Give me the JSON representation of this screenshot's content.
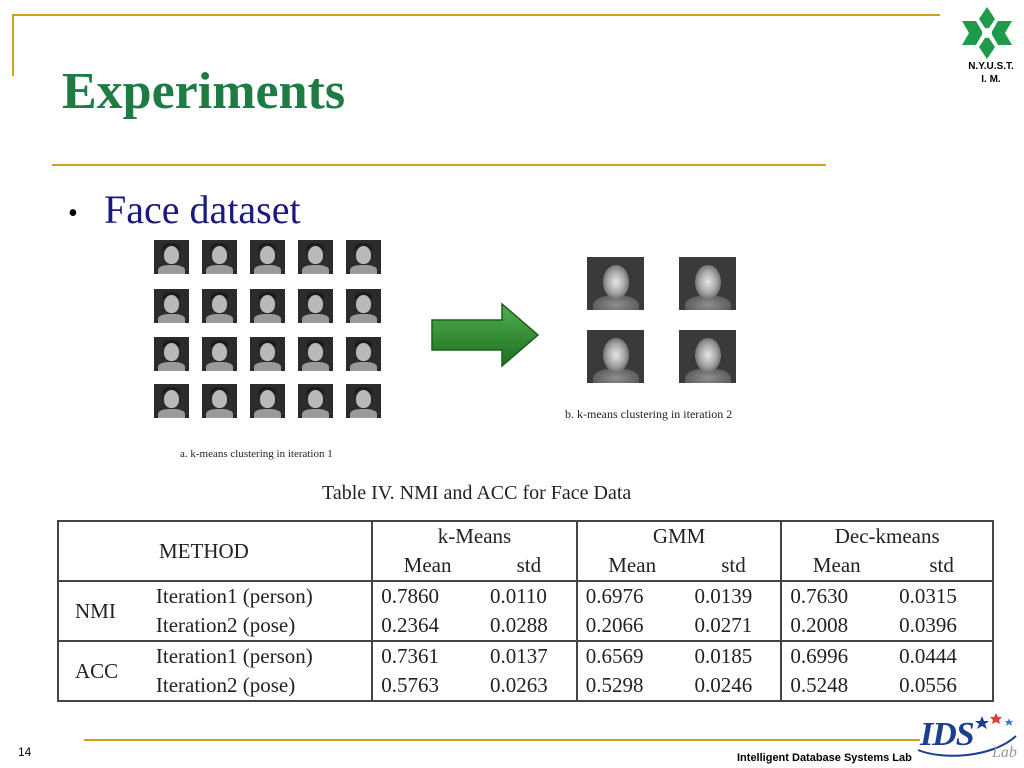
{
  "slide": {
    "title": "Experiments",
    "bullet": "Face dataset",
    "logo_text_line1": "N.Y.U.S.T.",
    "logo_text_line2": "I. M.",
    "page_number": "14",
    "footer_lab": "Intelligent Database Systems Lab",
    "footer_logo": "IDS",
    "footer_logo_lab": "Lab"
  },
  "figure": {
    "caption_a": "a. k-means clustering in iteration 1",
    "caption_b": "b. k-means clustering in iteration 2",
    "arrow_color": "#2e8b2e"
  },
  "table": {
    "title": "Table IV.  NMI and ACC for Face Data",
    "method_header": "METHOD",
    "groups": [
      "k-Means",
      "GMM",
      "Dec-kmeans"
    ],
    "subheaders": [
      "Mean",
      "std",
      "Mean",
      "std",
      "Mean",
      "std"
    ],
    "rows": [
      {
        "metric": "NMI",
        "label": "Iteration1 (person)",
        "values": [
          "0.7860",
          "0.0110",
          "0.6976",
          "0.0139",
          "0.7630",
          "0.0315"
        ]
      },
      {
        "metric": "",
        "label": "Iteration2 (pose)",
        "values": [
          "0.2364",
          "0.0288",
          "0.2066",
          "0.0271",
          "0.2008",
          "0.0396"
        ]
      },
      {
        "metric": "ACC",
        "label": "Iteration1 (person)",
        "values": [
          "0.7361",
          "0.0137",
          "0.6569",
          "0.0185",
          "0.6996",
          "0.0444"
        ]
      },
      {
        "metric": "",
        "label": "Iteration2 (pose)",
        "values": [
          "0.5763",
          "0.0263",
          "0.5298",
          "0.0246",
          "0.5248",
          "0.0556"
        ]
      }
    ]
  },
  "colors": {
    "title_green": "#1e7b43",
    "gold_rule": "#d4a017",
    "bullet_blue": "#1a1a7e"
  }
}
